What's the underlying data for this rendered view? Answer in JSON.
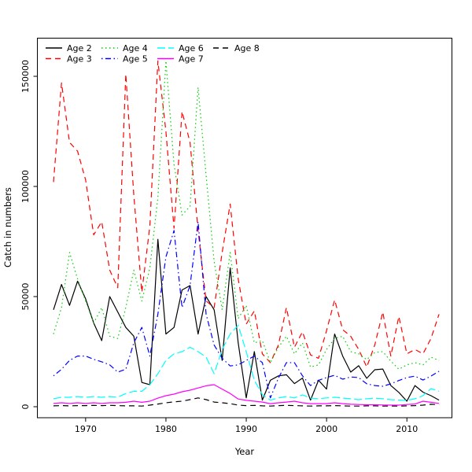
{
  "figure": {
    "xlabel": "Year",
    "ylabel": "Catch in numbers"
  },
  "chart_data": {
    "type": "line",
    "title": "",
    "xlabel": "Year",
    "ylabel": "Catch in numbers",
    "x_start_year": 1966,
    "x_end_year": 2014,
    "x_ticks": [
      1970,
      1980,
      1990,
      2000,
      2010
    ],
    "y_ticks": [
      0,
      50000,
      100000,
      150000
    ],
    "y_tick_labels": [
      "0",
      "50000",
      "100000",
      "150000"
    ],
    "ylim": [
      0,
      167000
    ],
    "grid": false,
    "legend_position": "top-left",
    "legend_columns": 4,
    "series": [
      {
        "name": "Age 2",
        "color": "#000000",
        "linetype": "solid",
        "values": [
          44000,
          55500,
          46000,
          57000,
          49000,
          38000,
          30000,
          50000,
          43000,
          36000,
          32000,
          11000,
          10000,
          76000,
          33000,
          36000,
          53000,
          55000,
          33000,
          50000,
          44000,
          21000,
          63000,
          29000,
          4000,
          25000,
          3000,
          12000,
          14000,
          14500,
          10500,
          13000,
          3000,
          12000,
          8000,
          33000,
          23000,
          15700,
          18600,
          12900,
          16800,
          17100,
          9600,
          6500,
          2500,
          9600,
          6600,
          5000,
          3000
        ]
      },
      {
        "name": "Age 3",
        "color": "#FF0000",
        "linetype": "dashed",
        "values": [
          102000,
          147000,
          120000,
          116000,
          103000,
          78000,
          84000,
          62000,
          54000,
          151000,
          96000,
          52000,
          82000,
          157000,
          125000,
          81000,
          134000,
          120000,
          80000,
          48000,
          45000,
          70000,
          92000,
          58000,
          37500,
          43500,
          24000,
          20000,
          28000,
          45000,
          27000,
          34000,
          23500,
          22000,
          34500,
          48500,
          35000,
          32000,
          26000,
          18000,
          28000,
          43000,
          23000,
          41000,
          24000,
          26000,
          24000,
          31000,
          42000
        ]
      },
      {
        "name": "Age 4",
        "color": "#00CD00",
        "linetype": "dotted",
        "values": [
          33000,
          45000,
          70000,
          58000,
          48000,
          38000,
          45000,
          32000,
          31000,
          45000,
          62000,
          48000,
          63000,
          95000,
          157000,
          110000,
          87000,
          91000,
          145000,
          105000,
          66000,
          44000,
          70000,
          40000,
          46000,
          29000,
          30000,
          20000,
          27000,
          32000,
          24000,
          29000,
          18000,
          19000,
          26000,
          31000,
          32000,
          25000,
          24000,
          21400,
          24600,
          25000,
          20700,
          17000,
          19000,
          20000,
          19000,
          22500,
          21000
        ]
      },
      {
        "name": "Age 5",
        "color": "#0000FF",
        "linetype": "dotdash",
        "values": [
          14000,
          17000,
          21000,
          23000,
          23000,
          21500,
          20400,
          19000,
          15700,
          17000,
          29000,
          36000,
          23000,
          42000,
          68000,
          80000,
          45000,
          55000,
          84000,
          42000,
          28000,
          22000,
          18500,
          19000,
          21000,
          23000,
          20000,
          4000,
          13000,
          20000,
          20000,
          14000,
          9600,
          12000,
          13200,
          14300,
          12500,
          13500,
          13200,
          10400,
          9600,
          9300,
          10400,
          11900,
          13200,
          13900,
          12100,
          13900,
          16100
        ]
      },
      {
        "name": "Age 6",
        "color": "#00FFFF",
        "linetype": "longdash",
        "values": [
          3600,
          4300,
          4300,
          4600,
          4300,
          4600,
          4300,
          4600,
          4300,
          6000,
          7000,
          7000,
          10000,
          15000,
          21000,
          24000,
          25000,
          27000,
          25000,
          22500,
          15000,
          26000,
          33000,
          37000,
          25000,
          12000,
          5500,
          3000,
          4000,
          4600,
          4000,
          5400,
          3900,
          3600,
          4000,
          4300,
          3900,
          3600,
          3200,
          3600,
          3900,
          3600,
          3200,
          3000,
          2900,
          3600,
          5000,
          8200,
          7000
        ]
      },
      {
        "name": "Age 7",
        "color": "#FF00FF",
        "linetype": "solid",
        "values": [
          1500,
          1800,
          1500,
          1800,
          1500,
          1800,
          1500,
          1800,
          1800,
          2000,
          2500,
          2000,
          2500,
          3900,
          5000,
          5700,
          6800,
          7500,
          8500,
          9500,
          10000,
          8000,
          6000,
          3500,
          2900,
          2500,
          2100,
          1400,
          1800,
          2100,
          2500,
          1800,
          1400,
          1400,
          1400,
          1800,
          1400,
          1100,
          1000,
          900,
          900,
          800,
          700,
          700,
          1000,
          1200,
          2500,
          2000,
          1500
        ]
      },
      {
        "name": "Age 8",
        "color": "#000000",
        "linetype": "dashed",
        "values": [
          400,
          500,
          400,
          500,
          500,
          600,
          500,
          600,
          500,
          400,
          400,
          300,
          700,
          1200,
          1800,
          2200,
          2500,
          3200,
          4000,
          3200,
          2100,
          1800,
          1400,
          700,
          500,
          600,
          400,
          300,
          500,
          600,
          500,
          400,
          300,
          400,
          400,
          500,
          400,
          300,
          300,
          400,
          400,
          300,
          300,
          300,
          400,
          500,
          700,
          1100,
          900
        ]
      }
    ]
  }
}
